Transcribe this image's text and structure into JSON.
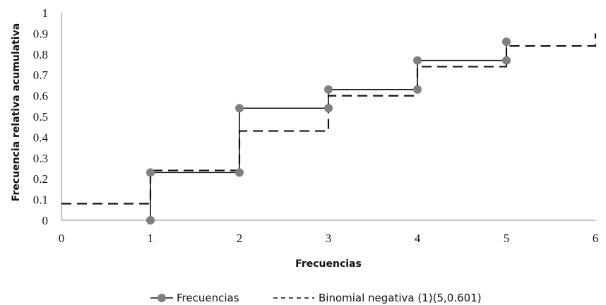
{
  "chart_data": {
    "type": "line",
    "xlabel": "Frecuencias",
    "ylabel": "Frecuencia relativa acumulativa",
    "xlim": [
      0,
      6
    ],
    "ylim": [
      0,
      1
    ],
    "x_ticks": [
      "0",
      "1",
      "2",
      "3",
      "4",
      "5",
      "6"
    ],
    "y_ticks": [
      "0",
      "0.1",
      "0.2",
      "0.3",
      "0.4",
      "0.5",
      "0.6",
      "0.7",
      "0.8",
      "0.9",
      "1"
    ],
    "grid": false,
    "legend_position": "bottom",
    "series": [
      {
        "name": "Frecuencias",
        "style": "solid step with markers",
        "color": "#111111",
        "marker_color": "#808080",
        "points": [
          {
            "x": 1,
            "y": 0
          },
          {
            "x": 1,
            "y": 0.23
          },
          {
            "x": 2,
            "y": 0.23
          },
          {
            "x": 2,
            "y": 0.54
          },
          {
            "x": 3,
            "y": 0.54
          },
          {
            "x": 3,
            "y": 0.63
          },
          {
            "x": 4,
            "y": 0.63
          },
          {
            "x": 4,
            "y": 0.77
          },
          {
            "x": 5,
            "y": 0.77
          },
          {
            "x": 5,
            "y": 0.86
          }
        ]
      },
      {
        "name": "Binomial negativa (1)(5,0.601)",
        "style": "dashed step",
        "color": "#111111",
        "points": [
          {
            "x": 0,
            "y": 0.08
          },
          {
            "x": 1,
            "y": 0.08
          },
          {
            "x": 1,
            "y": 0.24
          },
          {
            "x": 2,
            "y": 0.24
          },
          {
            "x": 2,
            "y": 0.43
          },
          {
            "x": 3,
            "y": 0.43
          },
          {
            "x": 3,
            "y": 0.6
          },
          {
            "x": 4,
            "y": 0.6
          },
          {
            "x": 4,
            "y": 0.74
          },
          {
            "x": 5,
            "y": 0.74
          },
          {
            "x": 5,
            "y": 0.84
          },
          {
            "x": 6,
            "y": 0.84
          },
          {
            "x": 6,
            "y": 0.9
          }
        ]
      }
    ]
  }
}
